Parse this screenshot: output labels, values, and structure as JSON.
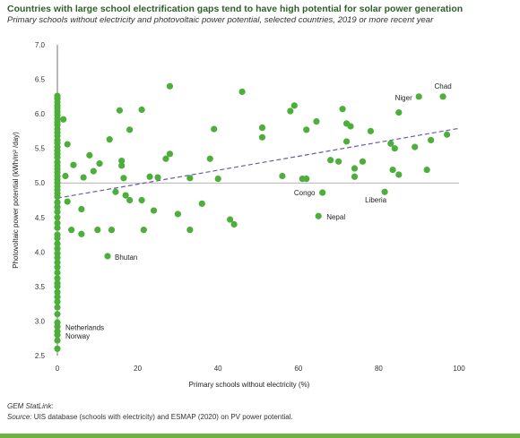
{
  "header": {
    "title": "Countries with large school electrification gaps tend to have high potential for solar power generation",
    "subtitle": "Primary schools without electricity and photovoltaic power potential, selected countries, 2019 or more recent year"
  },
  "footer": {
    "statlink": "GEM StatLink:",
    "source_label": "Source:",
    "source_text": " UIS database (schools with electricity) and ESMAP (2020) on PV power potential."
  },
  "colors": {
    "point": "#4caf3a",
    "trend": "#6a5aa8",
    "accent": "#2f5f2a",
    "bar": "#6cb33f"
  },
  "chart_data": {
    "type": "scatter",
    "xlabel": "Primary schools without electricity (%)",
    "ylabel": "Photovoltaic power potential (kWh/m² /day)",
    "xlim": [
      0,
      100
    ],
    "ylim": [
      2.5,
      7.0
    ],
    "xticks": [
      0,
      20,
      40,
      60,
      80,
      100
    ],
    "yticks": [
      2.5,
      3.0,
      3.5,
      4.0,
      4.5,
      5.0,
      5.5,
      6.0,
      6.5,
      7.0
    ],
    "grid": false,
    "reference_line_y": 5.0,
    "trendline": {
      "x": [
        0,
        100
      ],
      "y": [
        4.78,
        5.79
      ]
    },
    "points": [
      [
        0,
        6.26
      ],
      [
        0,
        6.22
      ],
      [
        0,
        6.17
      ],
      [
        0,
        6.12
      ],
      [
        0,
        6.08
      ],
      [
        0,
        6.03
      ],
      [
        0,
        5.98
      ],
      [
        0,
        5.93
      ],
      [
        0,
        5.88
      ],
      [
        0,
        5.84
      ],
      [
        0,
        5.78
      ],
      [
        0,
        5.73
      ],
      [
        0,
        5.68
      ],
      [
        0,
        5.62
      ],
      [
        0,
        5.58
      ],
      [
        0,
        5.52
      ],
      [
        0,
        5.47
      ],
      [
        0,
        5.42
      ],
      [
        0,
        5.37
      ],
      [
        0,
        5.3
      ],
      [
        0,
        5.25
      ],
      [
        0,
        5.2
      ],
      [
        0,
        5.15
      ],
      [
        0,
        5.1
      ],
      [
        0,
        5.05
      ],
      [
        0,
        5.0
      ],
      [
        0,
        4.95
      ],
      [
        0,
        4.9
      ],
      [
        0,
        4.85
      ],
      [
        0,
        4.8
      ],
      [
        0,
        4.72
      ],
      [
        0,
        4.65
      ],
      [
        0,
        4.58
      ],
      [
        0,
        4.5
      ],
      [
        0,
        4.42
      ],
      [
        0,
        4.35
      ],
      [
        0,
        4.25
      ],
      [
        0,
        4.2
      ],
      [
        0,
        4.12
      ],
      [
        0,
        4.05
      ],
      [
        0,
        3.98
      ],
      [
        0,
        3.92
      ],
      [
        0,
        3.85
      ],
      [
        0,
        3.78
      ],
      [
        0,
        3.7
      ],
      [
        0,
        3.62
      ],
      [
        0,
        3.55
      ],
      [
        0,
        3.5
      ],
      [
        0,
        3.42
      ],
      [
        0,
        3.35
      ],
      [
        0,
        3.28
      ],
      [
        0,
        3.2
      ],
      [
        0,
        3.1
      ],
      [
        0,
        2.98
      ],
      [
        0,
        2.92
      ],
      [
        0,
        2.85
      ],
      [
        0,
        2.8
      ],
      [
        0,
        2.72
      ],
      [
        0,
        2.6
      ],
      [
        1.5,
        5.92
      ],
      [
        2.5,
        5.56
      ],
      [
        2,
        5.1
      ],
      [
        2.5,
        4.73
      ],
      [
        3.5,
        4.32
      ],
      [
        4,
        5.26
      ],
      [
        6,
        4.62
      ],
      [
        6,
        4.26
      ],
      [
        6.5,
        5.08
      ],
      [
        8,
        5.4
      ],
      [
        9,
        5.17
      ],
      [
        10,
        4.32
      ],
      [
        10.5,
        5.28
      ],
      [
        12.5,
        3.94
      ],
      [
        13,
        5.63
      ],
      [
        13.5,
        4.32
      ],
      [
        14.5,
        4.87
      ],
      [
        15.5,
        6.05
      ],
      [
        16,
        5.32
      ],
      [
        16,
        5.25
      ],
      [
        16.5,
        5.07
      ],
      [
        17,
        4.82
      ],
      [
        18,
        5.77
      ],
      [
        18,
        4.75
      ],
      [
        21,
        6.06
      ],
      [
        21,
        4.75
      ],
      [
        21.5,
        4.32
      ],
      [
        23,
        5.09
      ],
      [
        24,
        4.6
      ],
      [
        25,
        5.08
      ],
      [
        27,
        5.35
      ],
      [
        28,
        6.4
      ],
      [
        28,
        5.42
      ],
      [
        30,
        4.55
      ],
      [
        33,
        5.07
      ],
      [
        33,
        4.32
      ],
      [
        36,
        4.7
      ],
      [
        38,
        5.35
      ],
      [
        39,
        5.78
      ],
      [
        40,
        5.06
      ],
      [
        43,
        4.47
      ],
      [
        44,
        4.4
      ],
      [
        46,
        6.32
      ],
      [
        51,
        5.8
      ],
      [
        51,
        5.66
      ],
      [
        56,
        5.1
      ],
      [
        58,
        6.04
      ],
      [
        59,
        6.12
      ],
      [
        61,
        5.06
      ],
      [
        62,
        5.77
      ],
      [
        62,
        5.06
      ],
      [
        64.5,
        5.89
      ],
      [
        65,
        4.52
      ],
      [
        66,
        4.86
      ],
      [
        68,
        5.33
      ],
      [
        70,
        5.31
      ],
      [
        71,
        6.07
      ],
      [
        72,
        5.86
      ],
      [
        72,
        5.6
      ],
      [
        73,
        5.82
      ],
      [
        74,
        5.21
      ],
      [
        74,
        5.09
      ],
      [
        76,
        5.31
      ],
      [
        78,
        5.75
      ],
      [
        81.5,
        4.87
      ],
      [
        83,
        5.57
      ],
      [
        83.5,
        5.19
      ],
      [
        84,
        5.5
      ],
      [
        85,
        6.02
      ],
      [
        85,
        5.12
      ],
      [
        89,
        5.52
      ],
      [
        90,
        6.25
      ],
      [
        92,
        5.19
      ],
      [
        93,
        5.62
      ],
      [
        96,
        6.25
      ],
      [
        97,
        5.7
      ]
    ],
    "labels": [
      {
        "text": "Chad",
        "x": 96,
        "y": 6.25
      },
      {
        "text": "Niger",
        "x": 90,
        "y": 6.25
      },
      {
        "text": "Congo",
        "x": 66,
        "y": 4.86
      },
      {
        "text": "Liberia",
        "x": 81.5,
        "y": 4.87
      },
      {
        "text": "Nepal",
        "x": 65,
        "y": 4.52
      },
      {
        "text": "Bhutan",
        "x": 12.5,
        "y": 3.94
      },
      {
        "text": "Netherlands",
        "x": 0,
        "y": 2.92
      },
      {
        "text": "Norway",
        "x": 0,
        "y": 2.8
      }
    ]
  }
}
